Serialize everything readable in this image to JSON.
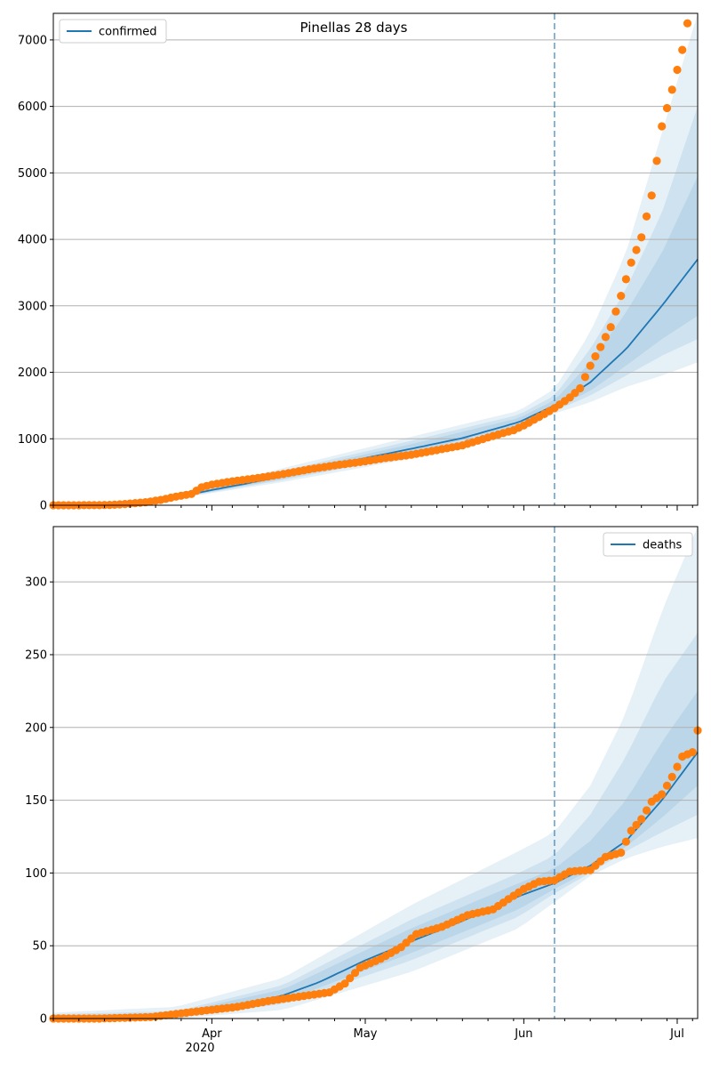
{
  "colors": {
    "model": "#1f77b4",
    "observed": "#ff7f0e",
    "band": "#1f77b4",
    "grid": "#b0b0b0",
    "vline": "#1f77b4"
  },
  "chart_data": [
    {
      "type": "line",
      "title": "Pinellas 28 days",
      "legend": {
        "label": "confirmed",
        "placement": "top-left"
      },
      "x_start": "2020-03-01",
      "x_end": "2020-07-05",
      "cutoff": "2020-06-07",
      "ylim": [
        0,
        7400
      ],
      "yticks": [
        0,
        1000,
        2000,
        3000,
        4000,
        5000,
        6000,
        7000
      ],
      "ytick_labels": [
        "0",
        "1000",
        "2000",
        "3000",
        "4000",
        "5000",
        "6000",
        "7000"
      ],
      "xtick_labels": [],
      "grid": "horizontal",
      "model_line": [
        [
          "2020-03-01",
          0
        ],
        [
          "2020-03-10",
          2
        ],
        [
          "2020-03-15",
          10
        ],
        [
          "2020-03-20",
          40
        ],
        [
          "2020-03-25",
          120
        ],
        [
          "2020-04-01",
          230
        ],
        [
          "2020-04-08",
          330
        ],
        [
          "2020-04-15",
          440
        ],
        [
          "2020-04-22",
          560
        ],
        [
          "2020-05-01",
          710
        ],
        [
          "2020-05-10",
          850
        ],
        [
          "2020-05-20",
          1010
        ],
        [
          "2020-05-31",
          1250
        ],
        [
          "2020-06-07",
          1500
        ],
        [
          "2020-06-14",
          1850
        ],
        [
          "2020-06-21",
          2350
        ],
        [
          "2020-06-28",
          3000
        ],
        [
          "2020-07-05",
          3700
        ]
      ],
      "bands": [
        {
          "t": [
            "2020-03-25",
            "2020-04-15",
            "2020-05-10",
            "2020-05-31",
            "2020-06-07",
            "2020-06-14",
            "2020-06-21",
            "2020-06-28",
            "2020-07-05"
          ],
          "lo": [
            100,
            350,
            700,
            1100,
            1380,
            1550,
            1780,
            1950,
            2150
          ],
          "hi": [
            150,
            560,
            1030,
            1420,
            1750,
            2600,
            3800,
            5600,
            7400
          ]
        },
        {
          "t": [
            "2020-03-25",
            "2020-04-15",
            "2020-05-10",
            "2020-05-31",
            "2020-06-07",
            "2020-06-14",
            "2020-06-21",
            "2020-06-28",
            "2020-07-05"
          ],
          "lo": [
            105,
            380,
            750,
            1160,
            1420,
            1650,
            1950,
            2250,
            2500
          ],
          "hi": [
            140,
            520,
            970,
            1360,
            1650,
            2350,
            3250,
            4400,
            6000
          ]
        },
        {
          "t": [
            "2020-03-25",
            "2020-04-15",
            "2020-05-10",
            "2020-05-31",
            "2020-06-07",
            "2020-06-14",
            "2020-06-21",
            "2020-06-28",
            "2020-07-05"
          ],
          "lo": [
            110,
            400,
            790,
            1200,
            1460,
            1720,
            2100,
            2500,
            2850
          ],
          "hi": [
            130,
            490,
            920,
            1310,
            1580,
            2150,
            2900,
            3800,
            4950
          ]
        }
      ],
      "observed": [
        [
          "2020-03-01",
          0
        ],
        [
          "2020-03-05",
          0
        ],
        [
          "2020-03-10",
          2
        ],
        [
          "2020-03-13",
          8
        ],
        [
          "2020-03-16",
          25
        ],
        [
          "2020-03-19",
          45
        ],
        [
          "2020-03-22",
          80
        ],
        [
          "2020-03-25",
          130
        ],
        [
          "2020-03-28",
          170
        ],
        [
          "2020-03-30",
          270
        ],
        [
          "2020-04-01",
          310
        ],
        [
          "2020-04-05",
          360
        ],
        [
          "2020-04-10",
          410
        ],
        [
          "2020-04-15",
          470
        ],
        [
          "2020-04-20",
          540
        ],
        [
          "2020-04-25",
          600
        ],
        [
          "2020-04-30",
          650
        ],
        [
          "2020-05-05",
          710
        ],
        [
          "2020-05-10",
          760
        ],
        [
          "2020-05-15",
          830
        ],
        [
          "2020-05-20",
          900
        ],
        [
          "2020-05-25",
          1020
        ],
        [
          "2020-05-30",
          1130
        ],
        [
          "2020-06-01",
          1200
        ],
        [
          "2020-06-04",
          1330
        ],
        [
          "2020-06-07",
          1460
        ],
        [
          "2020-06-10",
          1620
        ],
        [
          "2020-06-12",
          1760
        ],
        [
          "2020-06-14",
          2100
        ],
        [
          "2020-06-16",
          2380
        ],
        [
          "2020-06-18",
          2680
        ],
        [
          "2020-06-20",
          3150
        ],
        [
          "2020-06-22",
          3650
        ],
        [
          "2020-06-24",
          4030
        ],
        [
          "2020-06-26",
          4660
        ],
        [
          "2020-06-28",
          5700
        ],
        [
          "2020-06-30",
          6250
        ],
        [
          "2020-07-02",
          6850
        ],
        [
          "2020-07-03",
          7250
        ]
      ]
    },
    {
      "type": "line",
      "title": "",
      "legend": {
        "label": "deaths",
        "placement": "top-right"
      },
      "x_start": "2020-03-01",
      "x_end": "2020-07-05",
      "cutoff": "2020-06-07",
      "ylim": [
        0,
        338
      ],
      "yticks": [
        0,
        50,
        100,
        150,
        200,
        250,
        300
      ],
      "ytick_labels": [
        "0",
        "50",
        "100",
        "150",
        "200",
        "250",
        "300"
      ],
      "xticks": [
        "2020-04-01",
        "2020-05-01",
        "2020-06-01",
        "2020-07-01"
      ],
      "xtick_labels": [
        "Apr",
        "May",
        "Jun",
        "Jul"
      ],
      "year_label": "2020",
      "grid": "horizontal",
      "model_line": [
        [
          "2020-03-01",
          0
        ],
        [
          "2020-03-15",
          0.5
        ],
        [
          "2020-03-25",
          2
        ],
        [
          "2020-04-01",
          6
        ],
        [
          "2020-04-08",
          10
        ],
        [
          "2020-04-15",
          16
        ],
        [
          "2020-04-22",
          25
        ],
        [
          "2020-05-01",
          40
        ],
        [
          "2020-05-10",
          53
        ],
        [
          "2020-05-20",
          67
        ],
        [
          "2020-05-31",
          84
        ],
        [
          "2020-06-07",
          93
        ],
        [
          "2020-06-14",
          105
        ],
        [
          "2020-06-21",
          122
        ],
        [
          "2020-06-28",
          150
        ],
        [
          "2020-07-05",
          183
        ]
      ],
      "bands": [
        {
          "t": [
            "2020-03-01",
            "2020-03-25",
            "2020-04-15",
            "2020-05-10",
            "2020-05-31",
            "2020-06-07",
            "2020-06-14",
            "2020-06-21",
            "2020-06-28",
            "2020-07-05"
          ],
          "lo": [
            0,
            0,
            6,
            32,
            62,
            80,
            98,
            110,
            118,
            124
          ],
          "hi": [
            4,
            8,
            28,
            78,
            115,
            128,
            160,
            210,
            280,
            338
          ]
        },
        {
          "t": [
            "2020-03-01",
            "2020-03-25",
            "2020-04-15",
            "2020-05-10",
            "2020-05-31",
            "2020-06-07",
            "2020-06-14",
            "2020-06-21",
            "2020-06-28",
            "2020-07-05"
          ],
          "lo": [
            0,
            0.5,
            10,
            40,
            70,
            86,
            100,
            115,
            128,
            140
          ],
          "hi": [
            3,
            5,
            23,
            68,
            100,
            112,
            140,
            180,
            230,
            265
          ]
        },
        {
          "t": [
            "2020-03-01",
            "2020-03-25",
            "2020-04-15",
            "2020-05-10",
            "2020-05-31",
            "2020-06-07",
            "2020-06-14",
            "2020-06-21",
            "2020-06-28",
            "2020-07-05"
          ],
          "lo": [
            0,
            1,
            12,
            45,
            75,
            89,
            102,
            118,
            138,
            160
          ],
          "hi": [
            2,
            4,
            20,
            62,
            93,
            103,
            122,
            150,
            190,
            225
          ]
        }
      ],
      "observed": [
        [
          "2020-03-01",
          0
        ],
        [
          "2020-03-10",
          0
        ],
        [
          "2020-03-20",
          1
        ],
        [
          "2020-03-27",
          4
        ],
        [
          "2020-04-01",
          6
        ],
        [
          "2020-04-06",
          8
        ],
        [
          "2020-04-12",
          12
        ],
        [
          "2020-04-18",
          15
        ],
        [
          "2020-04-24",
          18
        ],
        [
          "2020-04-27",
          24
        ],
        [
          "2020-04-30",
          35
        ],
        [
          "2020-05-04",
          41
        ],
        [
          "2020-05-08",
          49
        ],
        [
          "2020-05-11",
          58
        ],
        [
          "2020-05-16",
          63
        ],
        [
          "2020-05-21",
          71
        ],
        [
          "2020-05-26",
          75
        ],
        [
          "2020-05-29",
          82
        ],
        [
          "2020-06-01",
          89
        ],
        [
          "2020-06-04",
          94
        ],
        [
          "2020-06-07",
          95
        ],
        [
          "2020-06-10",
          101
        ],
        [
          "2020-06-14",
          102
        ],
        [
          "2020-06-17",
          111
        ],
        [
          "2020-06-20",
          114
        ],
        [
          "2020-06-22",
          129
        ],
        [
          "2020-06-24",
          137
        ],
        [
          "2020-06-26",
          149
        ],
        [
          "2020-06-28",
          154
        ],
        [
          "2020-06-30",
          166
        ],
        [
          "2020-07-02",
          180
        ],
        [
          "2020-07-04",
          183
        ],
        [
          "2020-07-05",
          198
        ]
      ]
    }
  ]
}
